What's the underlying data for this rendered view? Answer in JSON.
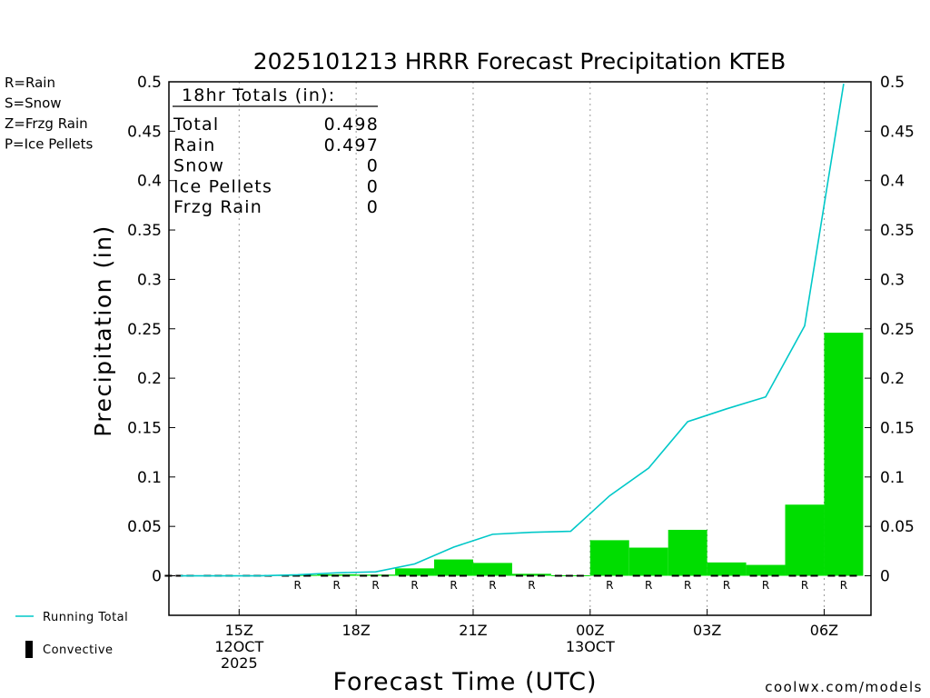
{
  "chart_data": {
    "type": "bar",
    "title": "2025101213 HRRR Forecast Precipitation KTEB",
    "xlabel": "Forecast Time (UTC)",
    "ylabel": "Precipitation (in)",
    "ylim": [
      -0.04,
      0.5
    ],
    "y_ticks": [
      0,
      0.05,
      0.1,
      0.15,
      0.2,
      0.25,
      0.3,
      0.35,
      0.4,
      0.45,
      0.5
    ],
    "y_tick_labels": [
      "0",
      "0.05",
      "0.1",
      "0.15",
      "0.2",
      "0.25",
      "0.3",
      "0.35",
      "0.4",
      "0.45",
      "0.5"
    ],
    "x_range_hours": [
      13.2,
      31.2
    ],
    "x_ticks": [
      {
        "hour": 15,
        "lines": [
          "15Z",
          "12OCT",
          "2025"
        ]
      },
      {
        "hour": 18,
        "lines": [
          "18Z"
        ]
      },
      {
        "hour": 21,
        "lines": [
          "21Z"
        ]
      },
      {
        "hour": 24,
        "lines": [
          "00Z",
          "13OCT"
        ]
      },
      {
        "hour": 27,
        "lines": [
          "03Z"
        ]
      },
      {
        "hour": 30,
        "lines": [
          "06Z"
        ]
      }
    ],
    "series": [
      {
        "name": "Hourly precipitation",
        "hours": [
          14,
          15,
          16,
          17,
          18,
          19,
          20,
          21,
          22,
          23,
          24,
          25,
          26,
          27,
          28,
          29,
          30,
          31
        ],
        "values": [
          0,
          0,
          0,
          0.0008,
          0.0015,
          0.0012,
          0.0075,
          0.0165,
          0.013,
          0.002,
          0.0005,
          0.036,
          0.0285,
          0.0465,
          0.0135,
          0.011,
          0.072,
          0.246
        ],
        "ptype": [
          "",
          "",
          "",
          "R",
          "R",
          "R",
          "R",
          "R",
          "R",
          "R",
          "",
          "R",
          "R",
          "R",
          "R",
          "R",
          "R",
          "R"
        ]
      },
      {
        "name": "Running Total",
        "hours": [
          14,
          15,
          16,
          17,
          18,
          19,
          20,
          21,
          22,
          23,
          24,
          25,
          26,
          27,
          28,
          29,
          30,
          31
        ],
        "values": [
          0,
          0,
          0,
          0.001,
          0.003,
          0.004,
          0.012,
          0.029,
          0.042,
          0.044,
          0.045,
          0.081,
          0.109,
          0.156,
          0.169,
          0.181,
          0.253,
          0.498
        ]
      }
    ],
    "totals_box": {
      "header": "18hr Totals (in):",
      "rows": [
        {
          "label": "Total",
          "value": "0.498"
        },
        {
          "label": "Rain",
          "value": "0.497"
        },
        {
          "label": "Snow",
          "value": "0"
        },
        {
          "label": "Ice Pellets",
          "value": "0"
        },
        {
          "label": "Frzg Rain",
          "value": "0"
        }
      ]
    },
    "legend_ptype": [
      {
        "text": "R=Rain",
        "color": "#00cc00"
      },
      {
        "text": "S=Snow",
        "color": "#3333ff"
      },
      {
        "text": "Z=Frzg Rain",
        "color": "#ff8c1a"
      },
      {
        "text": "P=Ice Pellets",
        "color": "#ff1493"
      }
    ],
    "legend_bottom": [
      {
        "kind": "line",
        "text": "Running Total"
      },
      {
        "kind": "bar",
        "text": "Convective"
      }
    ],
    "colors": {
      "bar": "#00dd00",
      "running_total": "#00c8c8",
      "grid": "#999999",
      "rain_letter": "#00cc00",
      "credit": "#cc0000"
    },
    "grid": true,
    "legend_placement": "left",
    "credit": "coolwx.com/models"
  }
}
